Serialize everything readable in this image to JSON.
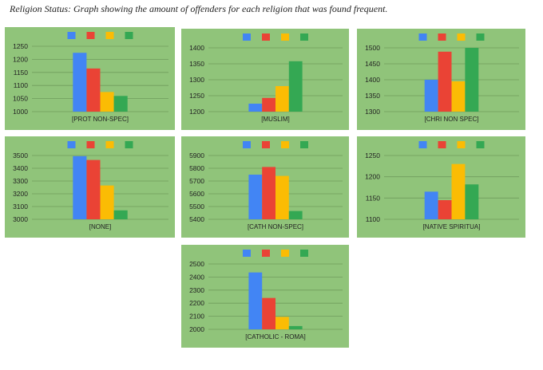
{
  "caption": "Religion Status: Graph showing the amount of offenders for each religion that was found frequent.",
  "colors": [
    "#4285f4",
    "#ea4335",
    "#fbbc04",
    "#34a853"
  ],
  "chart_data": [
    {
      "type": "bar",
      "categories": [
        "[PROT NON-SPEC]"
      ],
      "series": [
        {
          "values": [
            1225
          ]
        },
        {
          "values": [
            1165
          ]
        },
        {
          "values": [
            1075
          ]
        },
        {
          "values": [
            1060
          ]
        }
      ],
      "ylim": [
        1000,
        1250
      ],
      "yticks": [
        1000,
        1050,
        1100,
        1150,
        1200,
        1250
      ],
      "yticks_text": [
        "1000",
        "1050",
        "1100",
        "1150",
        "1200",
        "1250"
      ],
      "grid": true,
      "legend": "top"
    },
    {
      "type": "bar",
      "categories": [
        "[MUSLIM]"
      ],
      "series": [
        {
          "values": [
            1225
          ]
        },
        {
          "values": [
            1243
          ]
        },
        {
          "values": [
            1280
          ]
        },
        {
          "values": [
            1358
          ]
        }
      ],
      "ylim": [
        1200,
        1400
      ],
      "yticks": [
        1200,
        1250,
        1300,
        1350,
        1400
      ],
      "yticks_text": [
        "1200",
        "1250",
        "1300",
        "1350",
        "1400"
      ],
      "grid": true,
      "legend": "top"
    },
    {
      "type": "bar",
      "categories": [
        "[CHRI NON SPEC]"
      ],
      "series": [
        {
          "values": [
            1400
          ]
        },
        {
          "values": [
            1488
          ]
        },
        {
          "values": [
            1395
          ]
        },
        {
          "values": [
            1500
          ]
        }
      ],
      "ylim": [
        1300,
        1500
      ],
      "yticks": [
        1300,
        1350,
        1400,
        1450,
        1500
      ],
      "yticks_text": [
        "1300",
        "1350",
        "1400",
        "1450",
        "1500"
      ],
      "grid": true,
      "legend": "top"
    },
    {
      "type": "bar",
      "categories": [
        "[NONE]"
      ],
      "series": [
        {
          "values": [
            3495
          ]
        },
        {
          "values": [
            3465
          ]
        },
        {
          "values": [
            3265
          ]
        },
        {
          "values": [
            3070
          ]
        }
      ],
      "ylim": [
        3000,
        3500
      ],
      "yticks": [
        3000,
        3100,
        3200,
        3300,
        3400,
        3500
      ],
      "yticks_text": [
        "3000",
        "3100",
        "3200",
        "3300",
        "3400",
        "3500"
      ],
      "grid": true,
      "legend": "top"
    },
    {
      "type": "bar",
      "categories": [
        "[CATH NON-SPEC]"
      ],
      "series": [
        {
          "values": [
            5750
          ]
        },
        {
          "values": [
            5810
          ]
        },
        {
          "values": [
            5740
          ]
        },
        {
          "values": [
            5465
          ]
        }
      ],
      "ylim": [
        5400,
        5900
      ],
      "yticks": [
        5400,
        5500,
        5600,
        5700,
        5800,
        5900
      ],
      "yticks_text": [
        "5400",
        "5500",
        "5600",
        "5700",
        "5800",
        "5900"
      ],
      "grid": true,
      "legend": "top"
    },
    {
      "type": "bar",
      "categories": [
        "[NATIVE SPIRITUA]"
      ],
      "series": [
        {
          "values": [
            1165
          ]
        },
        {
          "values": [
            1145
          ]
        },
        {
          "values": [
            1230
          ]
        },
        {
          "values": [
            1182
          ]
        }
      ],
      "ylim": [
        1100,
        1250
      ],
      "yticks": [
        1100,
        1150,
        1200,
        1250
      ],
      "yticks_text": [
        "1100",
        "1150",
        "1200",
        "1250"
      ],
      "grid": true,
      "legend": "top"
    },
    {
      "type": "bar",
      "categories": [
        "[CATHOLIC - ROMA]"
      ],
      "series": [
        {
          "values": [
            2435
          ]
        },
        {
          "values": [
            2240
          ]
        },
        {
          "values": [
            2095
          ]
        },
        {
          "values": [
            2025
          ]
        }
      ],
      "ylim": [
        2000,
        2500
      ],
      "yticks": [
        2000,
        2100,
        2200,
        2300,
        2400,
        2500
      ],
      "yticks_text": [
        "2000",
        "2100",
        "2200",
        "2300",
        "2400",
        "2500"
      ],
      "grid": true,
      "legend": "top"
    }
  ]
}
